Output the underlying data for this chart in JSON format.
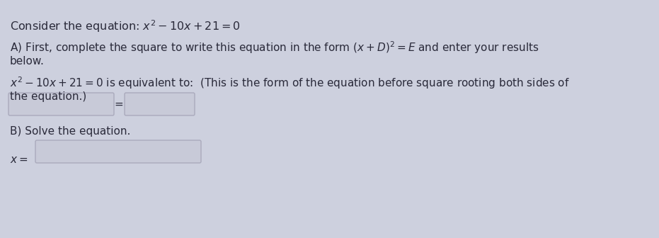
{
  "background_color": "#cdd0de",
  "text_color": "#2a2a3a",
  "title_text": "Consider the equation: $x^2 - 10x + 21 = 0$",
  "part_a_line1": "A) First, complete the square to write this equation in the form $(x + D)^2 = E$ and enter your results",
  "part_a_line2": "below.",
  "part_a_equiv_line1": "$x^2 - 10x + 21 = 0$ is equivalent to:  (This is the form of the equation before square rooting both sides of",
  "part_a_equiv_line2": "the equation.)",
  "part_b_text": "B) Solve the equation.",
  "x_label": "$x =$",
  "box_edge_color": "#aaaabc",
  "box_face_color": "#c8cad8",
  "font_size_title": 11.5,
  "font_size_body": 11.0
}
